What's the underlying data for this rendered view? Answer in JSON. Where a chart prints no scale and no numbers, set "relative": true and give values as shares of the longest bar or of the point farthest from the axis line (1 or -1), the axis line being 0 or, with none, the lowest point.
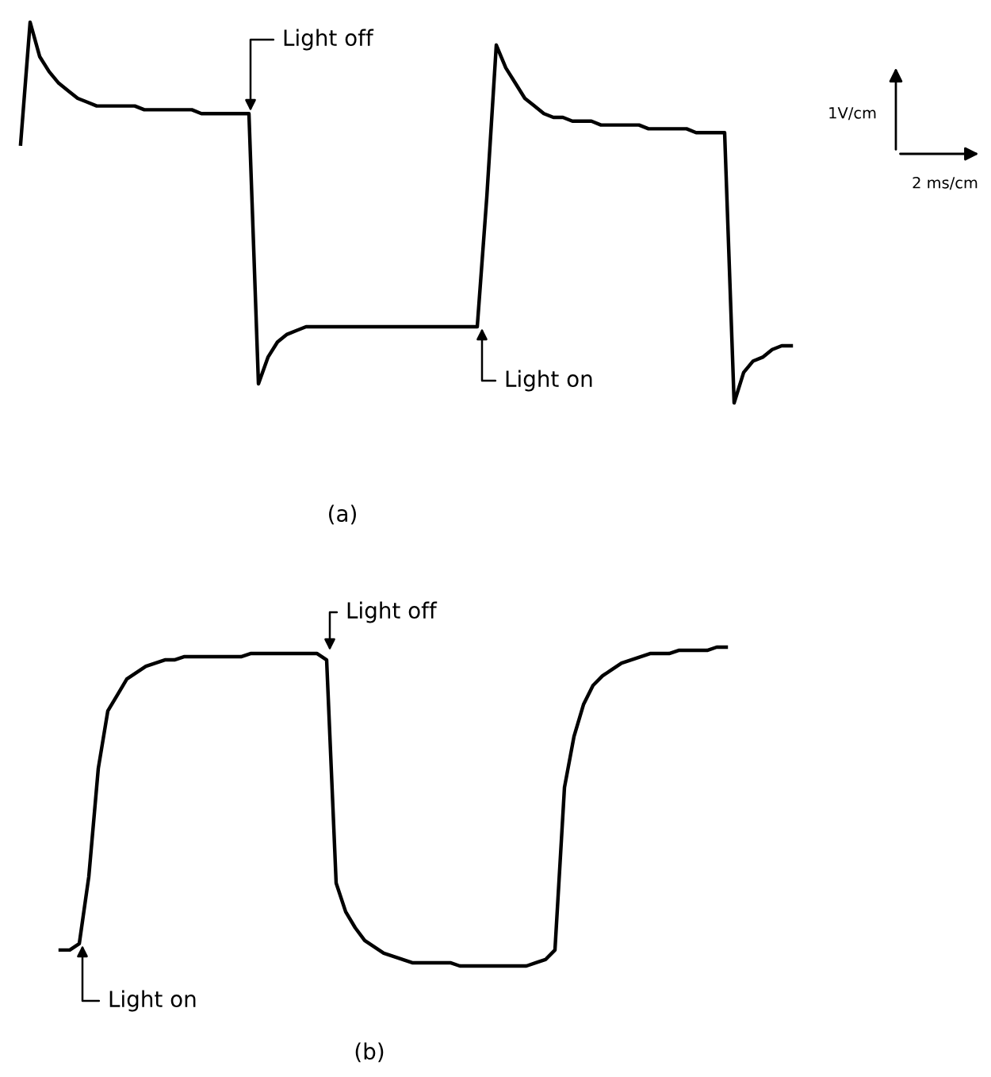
{
  "chart_data": [
    {
      "type": "line",
      "relative": true,
      "color": "#000000",
      "xlabel": "(a)",
      "annotations": [
        "Light off",
        "Light on",
        "1V/cm",
        "2 ms/cm"
      ],
      "categories": [
        null,
        null,
        null,
        null,
        null,
        null,
        null,
        null,
        null,
        null,
        null,
        null,
        null,
        null,
        null,
        null,
        null,
        null,
        null,
        null,
        null,
        null,
        null,
        null,
        null,
        null,
        null,
        null,
        null,
        null,
        null,
        null,
        null,
        null,
        null,
        null,
        null,
        null,
        null,
        null,
        null,
        null,
        null,
        null,
        null,
        null,
        null,
        null,
        null,
        null,
        null,
        null,
        null,
        null,
        null,
        null,
        null,
        null,
        null,
        null,
        null,
        null,
        null,
        null,
        null,
        null,
        null,
        null,
        null,
        null,
        null,
        null,
        null,
        null,
        null,
        null,
        null,
        null,
        null,
        null,
        null,
        null
      ],
      "values": [
        0.68,
        1.0,
        0.91,
        0.87,
        0.84,
        0.82,
        0.8,
        0.79,
        0.78,
        0.78,
        0.78,
        0.78,
        0.78,
        0.77,
        0.77,
        0.77,
        0.77,
        0.77,
        0.77,
        0.76,
        0.76,
        0.76,
        0.76,
        0.76,
        0.76,
        0.05,
        0.12,
        0.16,
        0.18,
        0.19,
        0.2,
        0.2,
        0.2,
        0.2,
        0.2,
        0.2,
        0.2,
        0.2,
        0.2,
        0.2,
        0.2,
        0.2,
        0.2,
        0.2,
        0.2,
        0.2,
        0.2,
        0.2,
        0.2,
        0.54,
        0.94,
        0.88,
        0.84,
        0.8,
        0.78,
        0.76,
        0.75,
        0.75,
        0.74,
        0.74,
        0.74,
        0.73,
        0.73,
        0.73,
        0.73,
        0.73,
        0.72,
        0.72,
        0.72,
        0.72,
        0.72,
        0.71,
        0.71,
        0.71,
        0.71,
        0.0,
        0.08,
        0.11,
        0.12,
        0.14,
        0.15,
        0.15
      ]
    },
    {
      "type": "line",
      "relative": true,
      "color": "#000000",
      "xlabel": "(b)",
      "annotations": [
        "Light off",
        "Light on"
      ],
      "categories": [
        null,
        null,
        null,
        null,
        null,
        null,
        null,
        null,
        null,
        null,
        null,
        null,
        null,
        null,
        null,
        null,
        null,
        null,
        null,
        null,
        null,
        null,
        null,
        null,
        null,
        null,
        null,
        null,
        null,
        null,
        null,
        null,
        null,
        null,
        null,
        null,
        null,
        null,
        null,
        null,
        null,
        null,
        null,
        null,
        null,
        null,
        null,
        null,
        null,
        null,
        null,
        null,
        null,
        null,
        null,
        null,
        null,
        null,
        null,
        null,
        null,
        null,
        null,
        null,
        null,
        null,
        null,
        null,
        null,
        null,
        null
      ],
      "values": [
        0.05,
        0.05,
        0.07,
        0.28,
        0.62,
        0.8,
        0.85,
        0.9,
        0.92,
        0.94,
        0.95,
        0.96,
        0.96,
        0.97,
        0.97,
        0.97,
        0.97,
        0.97,
        0.97,
        0.97,
        0.98,
        0.98,
        0.98,
        0.98,
        0.98,
        0.98,
        0.98,
        0.98,
        0.96,
        0.26,
        0.17,
        0.12,
        0.08,
        0.06,
        0.04,
        0.03,
        0.02,
        0.01,
        0.01,
        0.01,
        0.01,
        0.01,
        0.0,
        0.0,
        0.0,
        0.0,
        0.0,
        0.0,
        0.0,
        0.0,
        0.01,
        0.02,
        0.05,
        0.56,
        0.72,
        0.82,
        0.88,
        0.91,
        0.93,
        0.95,
        0.96,
        0.97,
        0.98,
        0.98,
        0.98,
        0.99,
        0.99,
        0.99,
        0.99,
        1.0,
        1.0
      ]
    }
  ]
}
